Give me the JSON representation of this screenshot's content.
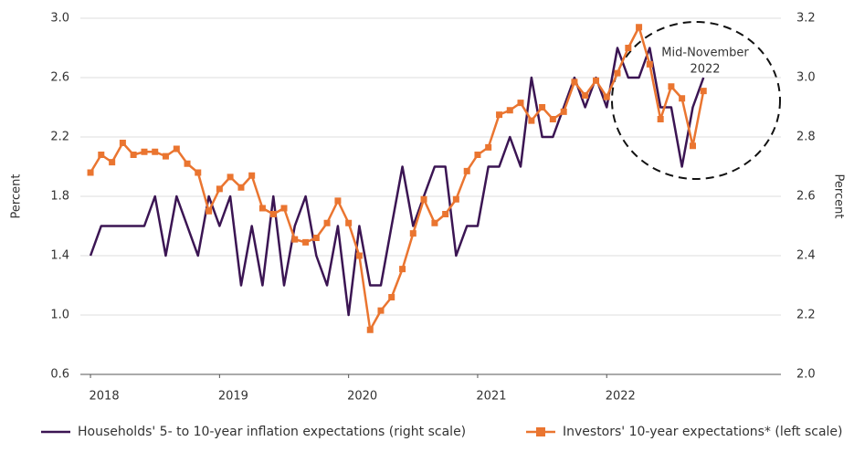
{
  "chart_data": {
    "type": "line",
    "y_axis_label": "Percent",
    "y2_axis_label": "Percent",
    "annotation": [
      "Mid-November",
      "2022"
    ],
    "xlim": [
      2017.95,
      2023.35
    ],
    "xticks": [
      2018,
      2019,
      2020,
      2021,
      2022
    ],
    "ylim": [
      0.6,
      3.0
    ],
    "yticks": [
      0.6,
      {
        "value": 1,
        "label": "1.0"
      },
      1.4,
      1.8,
      2.2,
      2.6,
      {
        "value": 3,
        "label": "3.0"
      }
    ],
    "y2lim": [
      2.0,
      3.2
    ],
    "y2ticks": [
      {
        "value": 2,
        "label": "2.0"
      },
      2.2,
      2.4,
      2.6,
      2.8,
      {
        "value": 3,
        "label": "3.0"
      },
      3.2
    ],
    "grid": true,
    "legend": "bottom",
    "x": [
      2018,
      2018.083,
      2018.167,
      2018.25,
      2018.333,
      2018.417,
      2018.5,
      2018.583,
      2018.667,
      2018.75,
      2018.833,
      2018.917,
      2019,
      2019.083,
      2019.167,
      2019.25,
      2019.333,
      2019.417,
      2019.5,
      2019.583,
      2019.667,
      2019.75,
      2019.833,
      2019.917,
      2020,
      2020.083,
      2020.167,
      2020.25,
      2020.333,
      2020.417,
      2020.5,
      2020.583,
      2020.667,
      2020.75,
      2020.833,
      2020.917,
      2021,
      2021.083,
      2021.167,
      2021.25,
      2021.333,
      2021.417,
      2021.5,
      2021.583,
      2021.667,
      2021.75,
      2021.833,
      2021.917,
      2022,
      2022.083,
      2022.167,
      2022.25,
      2022.333,
      2022.417,
      2022.5,
      2022.583,
      2022.667,
      2022.75
    ],
    "series": [
      {
        "name": "Households' 5- to 10-year inflation expectations (right scale)",
        "color": "#3b1553",
        "axis": "y2",
        "values": [
          2.4,
          2.5,
          2.5,
          2.5,
          2.5,
          2.5,
          2.6,
          2.4,
          2.6,
          2.5,
          2.4,
          2.6,
          2.5,
          2.6,
          2.3,
          2.5,
          2.3,
          2.6,
          2.3,
          2.5,
          2.6,
          2.4,
          2.3,
          2.5,
          2.2,
          2.5,
          2.3,
          2.3,
          2.5,
          2.7,
          2.5,
          2.6,
          2.7,
          2.7,
          2.4,
          2.5,
          2.5,
          2.7,
          2.7,
          2.8,
          2.7,
          3.0,
          2.8,
          2.8,
          2.9,
          3.0,
          2.9,
          3.0,
          2.9,
          3.1,
          3.0,
          3.0,
          3.1,
          2.9,
          2.9,
          2.7,
          2.9,
          3.0
        ]
      },
      {
        "name": "Investors' 10-year expectations* (left scale)",
        "color": "#ea7530",
        "axis": "y",
        "values": [
          1.96,
          2.08,
          2.03,
          2.16,
          2.08,
          2.1,
          2.1,
          2.07,
          2.12,
          2.02,
          1.96,
          1.7,
          1.85,
          1.93,
          1.86,
          1.94,
          1.72,
          1.68,
          1.72,
          1.51,
          1.49,
          1.52,
          1.62,
          1.77,
          1.62,
          1.4,
          0.9,
          1.03,
          1.12,
          1.31,
          1.55,
          1.78,
          1.62,
          1.68,
          1.78,
          1.97,
          2.08,
          2.13,
          2.35,
          2.38,
          2.43,
          2.31,
          2.4,
          2.32,
          2.37,
          2.57,
          2.48,
          2.58,
          2.47,
          2.63,
          2.8,
          2.94,
          2.69,
          2.32,
          2.54,
          2.46,
          2.14,
          2.51
        ]
      }
    ]
  }
}
